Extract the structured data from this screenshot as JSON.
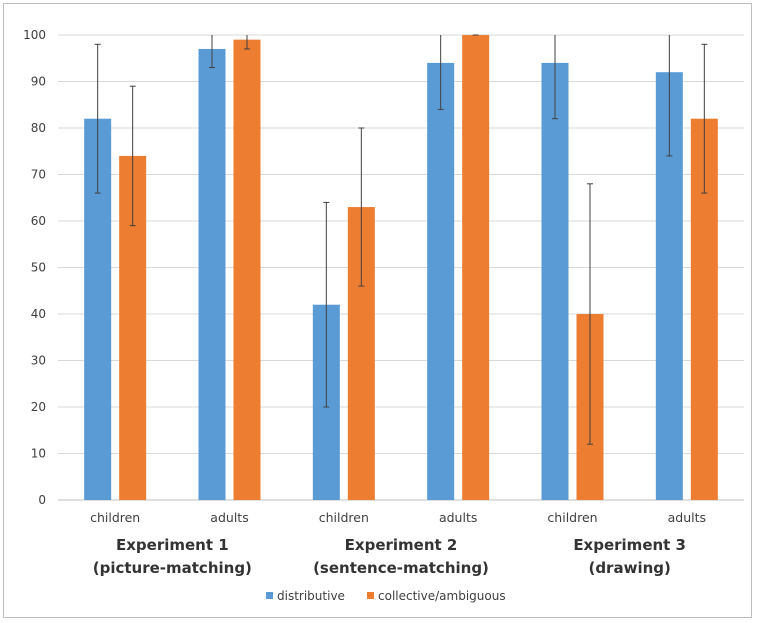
{
  "chart_data": {
    "type": "bar",
    "title": "",
    "xlabel": "",
    "ylabel": "",
    "ylim": [
      0,
      100
    ],
    "yticks": [
      0,
      10,
      20,
      30,
      40,
      50,
      60,
      70,
      80,
      90,
      100
    ],
    "grid": true,
    "groups": [
      {
        "line1": "Experiment 1",
        "line2": "(picture-matching)",
        "categories": [
          "children",
          "adults"
        ]
      },
      {
        "line1": "Experiment 2",
        "line2": "(sentence-matching)",
        "categories": [
          "children",
          "adults"
        ]
      },
      {
        "line1": "Experiment 3",
        "line2": "(drawing)",
        "categories": [
          "children",
          "adults"
        ]
      }
    ],
    "categories": [
      "children",
      "adults",
      "children",
      "adults",
      "children",
      "adults"
    ],
    "series": [
      {
        "name": "distributive",
        "color": "#5b9bd5",
        "values": [
          82,
          97,
          42,
          94,
          94,
          92
        ],
        "error_low": [
          66,
          93,
          20,
          84,
          82,
          74
        ],
        "error_high": [
          98,
          100,
          64,
          100,
          100,
          100
        ]
      },
      {
        "name": "collective/ambiguous",
        "color": "#ed7d31",
        "values": [
          74,
          99,
          63,
          100,
          40,
          82
        ],
        "error_low": [
          59,
          97,
          46,
          100,
          12,
          66
        ],
        "error_high": [
          89,
          100,
          80,
          100,
          68,
          98
        ]
      }
    ],
    "legend_position": "bottom"
  }
}
